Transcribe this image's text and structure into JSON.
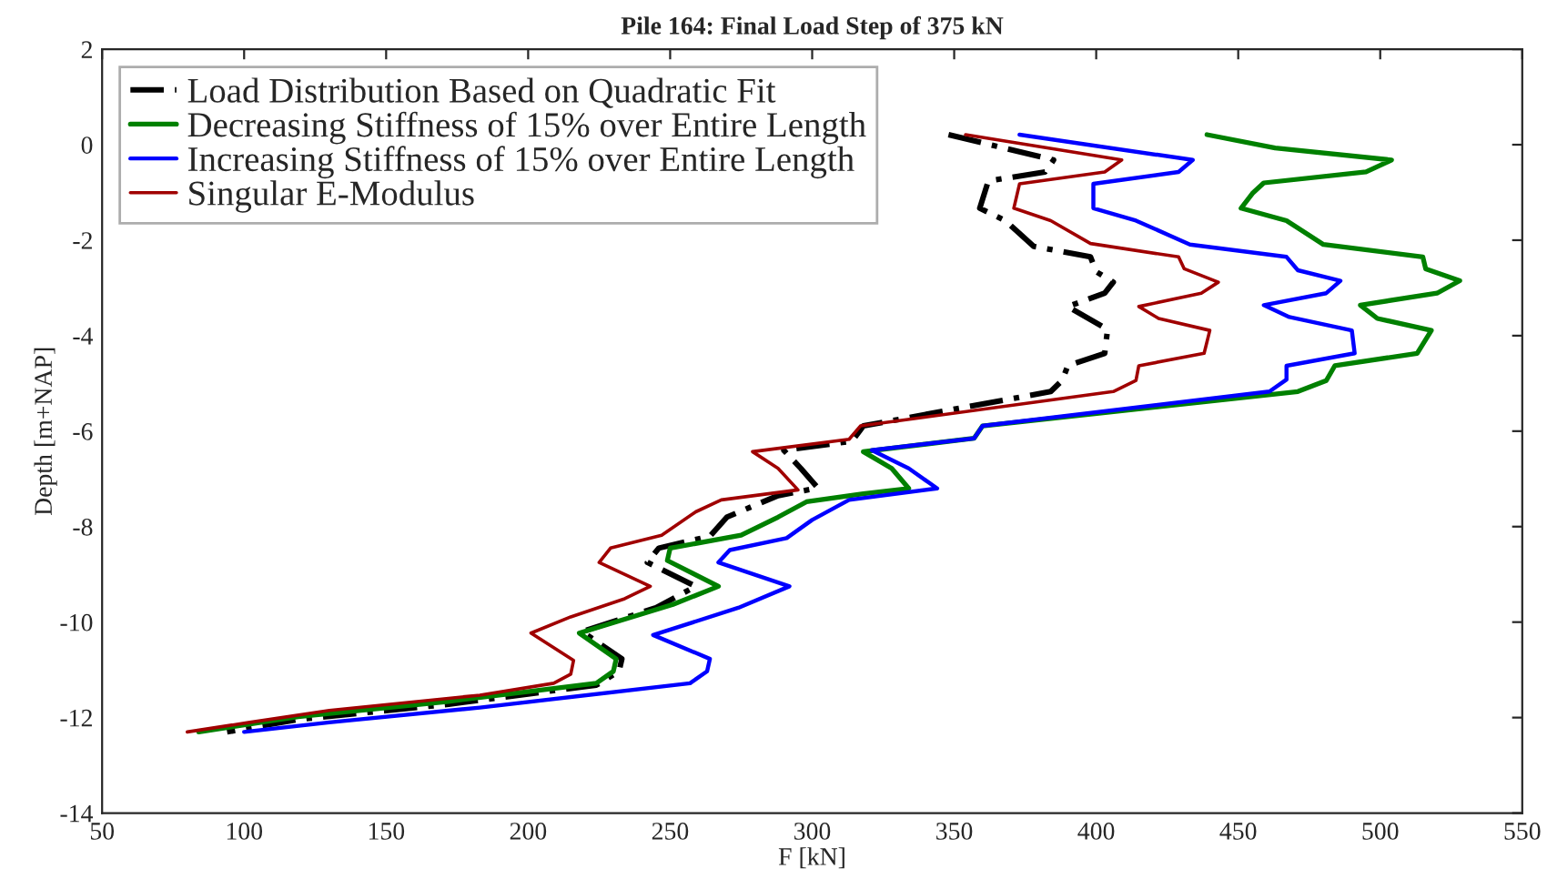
{
  "chart_data": {
    "type": "line",
    "title": "Pile 164: Final Load Step of 375 kN",
    "xlabel": "F [kN]",
    "ylabel": "Depth [m+NAP]",
    "xlim": [
      50,
      550
    ],
    "xticks": [
      50,
      100,
      150,
      200,
      250,
      300,
      350,
      400,
      450,
      500,
      550
    ],
    "ylim": [
      -14,
      2
    ],
    "yticks": [
      -14,
      -12,
      -10,
      -8,
      -6,
      -4,
      -2,
      0,
      2
    ],
    "grid": false,
    "legend": "top left",
    "marker": "none",
    "series": [
      {
        "name": "Load Distribution Based on Quadratic Fit",
        "color": "#000000",
        "line_style": "dashed",
        "x": [
          348,
          385,
          382,
          362,
          359,
          368,
          378,
          398,
          400,
          406,
          403,
          390,
          404,
          403,
          390,
          388,
          384,
          318,
          314,
          290,
          296,
          302,
          288,
          270,
          264,
          246,
          242,
          259,
          245,
          219,
          233,
          232,
          224,
          172,
          119,
          94
        ],
        "values": [
          0.21,
          -0.32,
          -0.57,
          -0.76,
          -1.33,
          -1.59,
          -2.13,
          -2.35,
          -2.66,
          -2.88,
          -3.11,
          -3.39,
          -3.87,
          -4.37,
          -4.63,
          -4.94,
          -5.17,
          -5.89,
          -6.21,
          -6.4,
          -6.78,
          -7.19,
          -7.35,
          -7.8,
          -8.2,
          -8.45,
          -8.75,
          -9.25,
          -9.7,
          -10.2,
          -10.77,
          -11.03,
          -11.32,
          -11.72,
          -12.04,
          -12.3
        ]
      },
      {
        "name": "Decreasing Stiffness of 15% over Entire Length",
        "color": "#008000",
        "line_style": "solid",
        "x": [
          439,
          463,
          504,
          495,
          459,
          455,
          451,
          467,
          480,
          515,
          516,
          528,
          520,
          493,
          499,
          518,
          513,
          484,
          481,
          471,
          360,
          357,
          318,
          328,
          334,
          318,
          298,
          288,
          275,
          250,
          249,
          267,
          251,
          218,
          231,
          230,
          224,
          172,
          119,
          84
        ],
        "values": [
          0.21,
          -0.07,
          -0.32,
          -0.57,
          -0.8,
          -1.02,
          -1.33,
          -1.59,
          -2.09,
          -2.35,
          -2.6,
          -2.85,
          -3.11,
          -3.36,
          -3.64,
          -3.89,
          -4.37,
          -4.63,
          -4.94,
          -5.17,
          -5.89,
          -6.15,
          -6.43,
          -6.78,
          -7.2,
          -7.31,
          -7.48,
          -7.8,
          -8.18,
          -8.45,
          -8.71,
          -9.25,
          -9.63,
          -10.23,
          -10.77,
          -11.03,
          -11.28,
          -11.66,
          -11.98,
          -12.3
        ]
      },
      {
        "name": "Increasing Stiffness of 15% over Entire Length",
        "color": "#0000ff",
        "line_style": "solid",
        "x": [
          373,
          434,
          429,
          399,
          399,
          414,
          433,
          467,
          471,
          486,
          481,
          459,
          468,
          490,
          491,
          467,
          467,
          461,
          360,
          357,
          321,
          334,
          344,
          313,
          300,
          291,
          271,
          267,
          292,
          274,
          244,
          264,
          263,
          257,
          183,
          130,
          100
        ],
        "values": [
          0.21,
          -0.32,
          -0.57,
          -0.82,
          -1.33,
          -1.59,
          -2.09,
          -2.35,
          -2.63,
          -2.85,
          -3.11,
          -3.36,
          -3.61,
          -3.89,
          -4.37,
          -4.63,
          -4.92,
          -5.17,
          -5.89,
          -6.15,
          -6.4,
          -6.78,
          -7.2,
          -7.44,
          -7.86,
          -8.24,
          -8.49,
          -8.75,
          -9.25,
          -9.7,
          -10.27,
          -10.77,
          -11.03,
          -11.28,
          -11.79,
          -12.1,
          -12.3
        ]
      },
      {
        "name": "Singular E-Modulus",
        "color": "#a00000",
        "line_style": "solid",
        "x": [
          354,
          409,
          403,
          373,
          371,
          384,
          398,
          429,
          431,
          443,
          437,
          415,
          422,
          440,
          438,
          415,
          414,
          406,
          317,
          313,
          279,
          288,
          295,
          268,
          259,
          247,
          229,
          225,
          243,
          234,
          215,
          201,
          216,
          215,
          209,
          183,
          130,
          102,
          80
        ],
        "values": [
          0.21,
          -0.32,
          -0.57,
          -0.82,
          -1.33,
          -1.59,
          -2.07,
          -2.35,
          -2.6,
          -2.88,
          -3.11,
          -3.39,
          -3.64,
          -3.89,
          -4.37,
          -4.63,
          -4.94,
          -5.17,
          -5.89,
          -6.17,
          -6.43,
          -6.78,
          -7.23,
          -7.44,
          -7.69,
          -8.18,
          -8.45,
          -8.75,
          -9.25,
          -9.51,
          -9.89,
          -10.23,
          -10.8,
          -11.09,
          -11.28,
          -11.53,
          -11.85,
          -12.1,
          -12.3
        ]
      }
    ]
  }
}
